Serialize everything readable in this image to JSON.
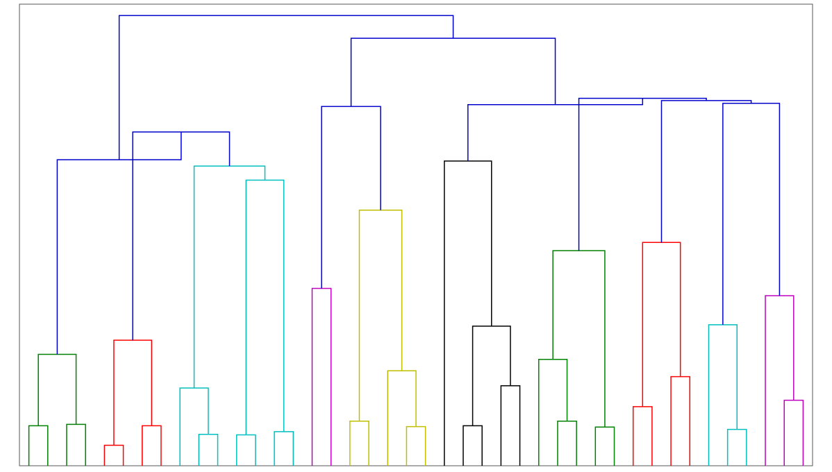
{
  "chart_data": {
    "type": "dendrogram",
    "title": "",
    "xlabel": "",
    "ylabel": "",
    "axes_visible": false,
    "grid": false,
    "colors": {
      "above_threshold": "#0000cc",
      "clusters": [
        "#008000",
        "#ff0000",
        "#00bfbf",
        "#bf00bf",
        "#bfbf00",
        "#000000",
        "#008000",
        "#ff0000",
        "#00bfbf",
        "#bf00bf"
      ]
    },
    "leaf_count": 42,
    "merges": [
      {
        "id": "g1",
        "left": 0,
        "right": 1,
        "height": 8.8,
        "color": "#008000"
      },
      {
        "id": "g2",
        "left": 2,
        "right": 3,
        "height": 9.1,
        "color": "#008000"
      },
      {
        "id": "g3",
        "left": "g1",
        "right": "g2",
        "height": 24.5,
        "color": "#008000"
      },
      {
        "id": "r1",
        "left": 4,
        "right": 5,
        "height": 4.5,
        "color": "#ff0000"
      },
      {
        "id": "r2",
        "left": 6,
        "right": 7,
        "height": 8.8,
        "color": "#ff0000"
      },
      {
        "id": "r3",
        "left": "r1",
        "right": "r2",
        "height": 27.6,
        "color": "#ff0000"
      },
      {
        "id": "c1",
        "left": 9,
        "right": 10,
        "height": 6.9,
        "color": "#00bfbf"
      },
      {
        "id": "c2",
        "left": 8,
        "right": "c1",
        "height": 17.1,
        "color": "#00bfbf"
      },
      {
        "id": "c3",
        "left": 11,
        "right": 12,
        "height": 6.8,
        "color": "#00bfbf"
      },
      {
        "id": "c4",
        "left": 13,
        "right": 14,
        "height": 7.5,
        "color": "#00bfbf"
      },
      {
        "id": "c5",
        "left": "c3",
        "right": "c4",
        "height": 62.8,
        "color": "#00bfbf"
      },
      {
        "id": "c6",
        "left": "c2",
        "right": "c5",
        "height": 65.9,
        "color": "#00bfbf"
      },
      {
        "id": "m1",
        "left": 15,
        "right": 16,
        "height": 39.0,
        "color": "#bf00bf"
      },
      {
        "id": "y1",
        "left": 17,
        "right": 18,
        "height": 9.8,
        "color": "#bfbf00"
      },
      {
        "id": "y2",
        "left": 20,
        "right": 21,
        "height": 8.6,
        "color": "#bfbf00"
      },
      {
        "id": "y3",
        "left": 19,
        "right": "y2",
        "height": 20.9,
        "color": "#bfbf00"
      },
      {
        "id": "y4",
        "left": "y1",
        "right": "y3",
        "height": 56.2,
        "color": "#bfbf00"
      },
      {
        "id": "k1",
        "left": 23,
        "right": 24,
        "height": 8.8,
        "color": "#000000"
      },
      {
        "id": "k2",
        "left": 25,
        "right": 26,
        "height": 17.6,
        "color": "#000000"
      },
      {
        "id": "k3",
        "left": "k1",
        "right": "k2",
        "height": 30.7,
        "color": "#000000"
      },
      {
        "id": "k4",
        "left": 22,
        "right": "k3",
        "height": 67.0,
        "color": "#000000"
      },
      {
        "id": "g4",
        "left": 28,
        "right": 29,
        "height": 9.8,
        "color": "#008000"
      },
      {
        "id": "g5",
        "left": 27,
        "right": "g4",
        "height": 23.4,
        "color": "#008000"
      },
      {
        "id": "g6",
        "left": 30,
        "right": 31,
        "height": 8.5,
        "color": "#008000"
      },
      {
        "id": "g7",
        "left": "g5",
        "right": "g6",
        "height": 47.3,
        "color": "#008000"
      },
      {
        "id": "r4",
        "left": 32,
        "right": 33,
        "height": 13.0,
        "color": "#ff0000"
      },
      {
        "id": "r5",
        "left": 34,
        "right": 35,
        "height": 19.6,
        "color": "#ff0000"
      },
      {
        "id": "r6",
        "left": "r4",
        "right": "r5",
        "height": 49.1,
        "color": "#ff0000"
      },
      {
        "id": "t1",
        "left": 37,
        "right": 38,
        "height": 8.0,
        "color": "#00bfbf"
      },
      {
        "id": "t2",
        "left": 36,
        "right": "t1",
        "height": 31.0,
        "color": "#00bfbf"
      },
      {
        "id": "p1",
        "left": 40,
        "right": 41,
        "height": 14.4,
        "color": "#bf00bf"
      },
      {
        "id": "p2",
        "left": 39,
        "right": "p1",
        "height": 37.4,
        "color": "#bf00bf"
      },
      {
        "id": "b1",
        "left": "t2",
        "right": "p2",
        "height": 79.7,
        "color": "#0000cc"
      },
      {
        "id": "b2",
        "left": "r6",
        "right": "b1",
        "height": 80.3,
        "color": "#0000cc"
      },
      {
        "id": "b3",
        "left": "g7",
        "right": "b2",
        "height": 80.8,
        "color": "#0000cc"
      },
      {
        "id": "b4",
        "left": "k4",
        "right": "b3",
        "height": 79.4,
        "color": "#0000cc"
      },
      {
        "id": "b5",
        "left": "m1",
        "right": "y4",
        "height": 79.0,
        "color": "#0000cc"
      },
      {
        "id": "b6",
        "left": "b5",
        "right": "b4",
        "height": 94.0,
        "color": "#0000cc"
      },
      {
        "id": "b7",
        "left": "c6",
        "right": "r3",
        "height": 73.4,
        "color": "#0000cc"
      },
      {
        "id": "b8",
        "left": "g3",
        "right": "b7",
        "height": 67.3,
        "color": "#0000cc"
      },
      {
        "id": "b9",
        "left": "b8",
        "right": "b6",
        "height": 99.0,
        "color": "#0000cc"
      }
    ]
  }
}
